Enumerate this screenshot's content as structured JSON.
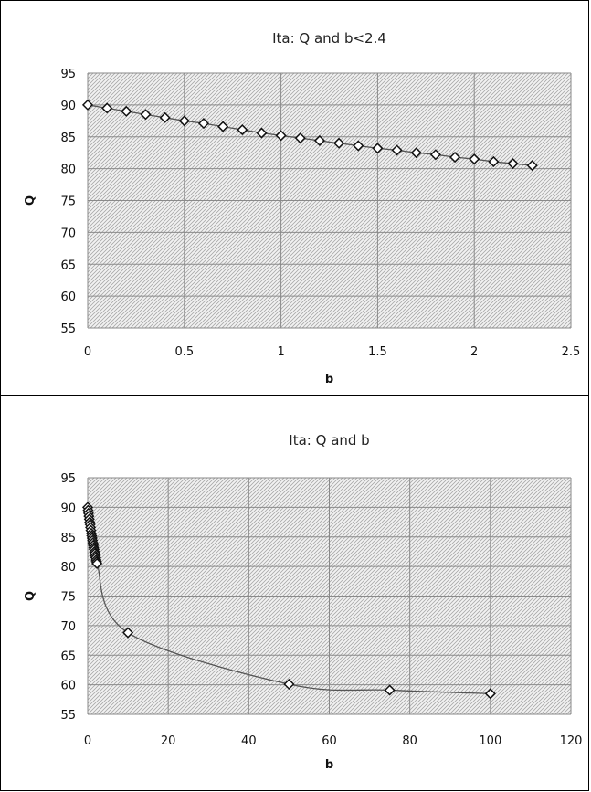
{
  "chart_data": [
    {
      "type": "scatter",
      "title": "Ita: Q and b<2.4",
      "xlabel": "b",
      "ylabel": "Q",
      "xlim": [
        0,
        2.5
      ],
      "ylim": [
        55,
        95
      ],
      "xticks": [
        "0",
        "0.5",
        "1",
        "1.5",
        "2",
        "2.5"
      ],
      "yticks": [
        "55",
        "60",
        "65",
        "70",
        "75",
        "80",
        "85",
        "90",
        "95"
      ],
      "grid": true,
      "background": "hatched",
      "marker": "diamond",
      "connected": true,
      "series": [
        {
          "x": [
            0,
            0.1,
            0.2,
            0.3,
            0.4,
            0.5,
            0.6,
            0.7,
            0.8,
            0.9,
            1.0,
            1.1,
            1.2,
            1.3,
            1.4,
            1.5,
            1.6,
            1.7,
            1.8,
            1.9,
            2.0,
            2.1,
            2.2,
            2.3
          ],
          "y": [
            90.0,
            89.5,
            89.0,
            88.5,
            88.0,
            87.5,
            87.1,
            86.6,
            86.1,
            85.6,
            85.2,
            84.8,
            84.4,
            84.0,
            83.6,
            83.2,
            82.9,
            82.5,
            82.2,
            81.8,
            81.5,
            81.1,
            80.8,
            80.5
          ]
        }
      ]
    },
    {
      "type": "scatter",
      "title": "Ita: Q and b",
      "xlabel": "b",
      "ylabel": "Q",
      "xlim": [
        0,
        120
      ],
      "ylim": [
        55,
        95
      ],
      "xticks": [
        "0",
        "20",
        "40",
        "60",
        "80",
        "100",
        "120"
      ],
      "yticks": [
        "55",
        "60",
        "65",
        "70",
        "75",
        "80",
        "85",
        "90",
        "95"
      ],
      "grid": true,
      "background": "hatched",
      "marker": "diamond",
      "connected": true,
      "smooth": true,
      "series": [
        {
          "x": [
            0,
            0.1,
            0.2,
            0.3,
            0.4,
            0.5,
            0.6,
            0.7,
            0.8,
            0.9,
            1.0,
            1.1,
            1.2,
            1.3,
            1.4,
            1.5,
            1.6,
            1.7,
            1.8,
            1.9,
            2.0,
            2.1,
            2.2,
            2.3,
            10,
            50,
            75,
            100
          ],
          "y": [
            90.0,
            89.5,
            89.0,
            88.5,
            88.0,
            87.5,
            87.1,
            86.6,
            86.1,
            85.6,
            85.2,
            84.8,
            84.4,
            84.0,
            83.6,
            83.2,
            82.9,
            82.5,
            82.2,
            81.8,
            81.5,
            81.1,
            80.8,
            80.5,
            68.8,
            60.1,
            59.1,
            58.5
          ]
        }
      ]
    }
  ]
}
